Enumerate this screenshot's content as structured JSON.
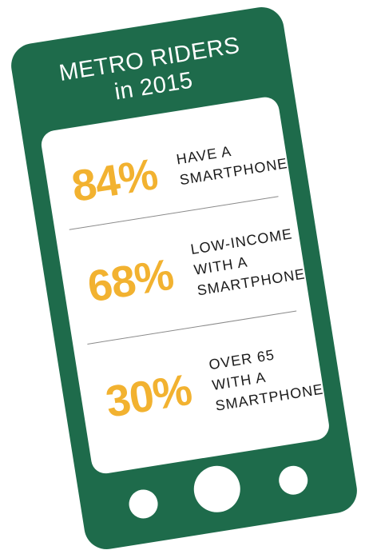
{
  "title": {
    "line1": "METRO RIDERS",
    "line2": "in 2015"
  },
  "stats": [
    {
      "percent": "84%",
      "lines": [
        "HAVE A",
        "SMARTPHONE"
      ]
    },
    {
      "percent": "68%",
      "lines": [
        "LOW-INCOME",
        "WITH A",
        "SMARTPHONE"
      ]
    },
    {
      "percent": "30%",
      "lines": [
        "OVER 65",
        "WITH A",
        "SMARTPHONE"
      ]
    }
  ],
  "colors": {
    "phone_body": "#1e6b4b",
    "percent_accent": "#f2b230",
    "screen": "#ffffff"
  }
}
